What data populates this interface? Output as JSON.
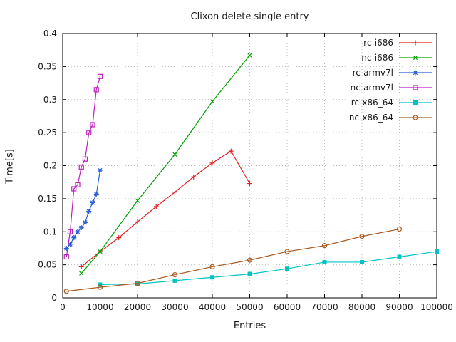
{
  "page": {
    "background": "#ffffff"
  },
  "chart_data": {
    "type": "line",
    "title": "Clixon delete single entry",
    "xlabel": "Entries",
    "ylabel": "Time[s]",
    "xlim": [
      0,
      100000
    ],
    "ylim": [
      0,
      0.4
    ],
    "grid": true,
    "legend_position": "top-right-inside",
    "xticks": [
      0,
      10000,
      20000,
      30000,
      40000,
      50000,
      60000,
      70000,
      80000,
      90000,
      100000
    ],
    "xtick_labels": [
      "0",
      "10000",
      "20000",
      "30000",
      "40000",
      "50000",
      "60000",
      "70000",
      "80000",
      "90000",
      "100000"
    ],
    "yticks": [
      0,
      0.05,
      0.1,
      0.15,
      0.2,
      0.25,
      0.3,
      0.35,
      0.4
    ],
    "ytick_labels": [
      "0",
      "0.05",
      "0.1",
      "0.15",
      "0.2",
      "0.25",
      "0.3",
      "0.35",
      "0.4"
    ],
    "series": [
      {
        "name": "rc-i686",
        "color": "#dd2222",
        "marker": "plus",
        "x": [
          5000,
          10000,
          15000,
          20000,
          25000,
          30000,
          35000,
          40000,
          45000,
          50000
        ],
        "y": [
          0.047,
          0.07,
          0.091,
          0.115,
          0.138,
          0.16,
          0.183,
          0.204,
          0.222,
          0.173
        ]
      },
      {
        "name": "nc-i686",
        "color": "#00a000",
        "marker": "cross",
        "x": [
          5000,
          10000,
          20000,
          30000,
          40000,
          50000
        ],
        "y": [
          0.037,
          0.07,
          0.147,
          0.217,
          0.297,
          0.367
        ]
      },
      {
        "name": "rc-armv7l",
        "color": "#2b5fd9",
        "marker": "asterisk",
        "x": [
          1000,
          2000,
          3000,
          4000,
          5000,
          6000,
          7000,
          8000,
          9000,
          10000
        ],
        "y": [
          0.075,
          0.081,
          0.091,
          0.1,
          0.106,
          0.114,
          0.131,
          0.144,
          0.157,
          0.193
        ]
      },
      {
        "name": "nc-armv7l",
        "color": "#bb22bb",
        "marker": "square-open",
        "x": [
          1000,
          2000,
          3000,
          4000,
          5000,
          6000,
          7000,
          8000,
          9000,
          10000
        ],
        "y": [
          0.062,
          0.1,
          0.165,
          0.171,
          0.198,
          0.21,
          0.25,
          0.262,
          0.315,
          0.335
        ]
      },
      {
        "name": "rc-x86_64",
        "color": "#00c4c4",
        "marker": "square-filled",
        "x": [
          10000,
          20000,
          30000,
          40000,
          50000,
          60000,
          70000,
          80000,
          90000,
          100000
        ],
        "y": [
          0.02,
          0.021,
          0.026,
          0.031,
          0.036,
          0.044,
          0.054,
          0.054,
          0.062,
          0.07
        ]
      },
      {
        "name": "nc-x86_64",
        "color": "#a9581e",
        "marker": "circle-open",
        "x": [
          1000,
          10000,
          20000,
          30000,
          40000,
          50000,
          60000,
          70000,
          80000,
          90000
        ],
        "y": [
          0.01,
          0.016,
          0.022,
          0.035,
          0.047,
          0.057,
          0.07,
          0.079,
          0.093,
          0.104
        ]
      }
    ]
  }
}
